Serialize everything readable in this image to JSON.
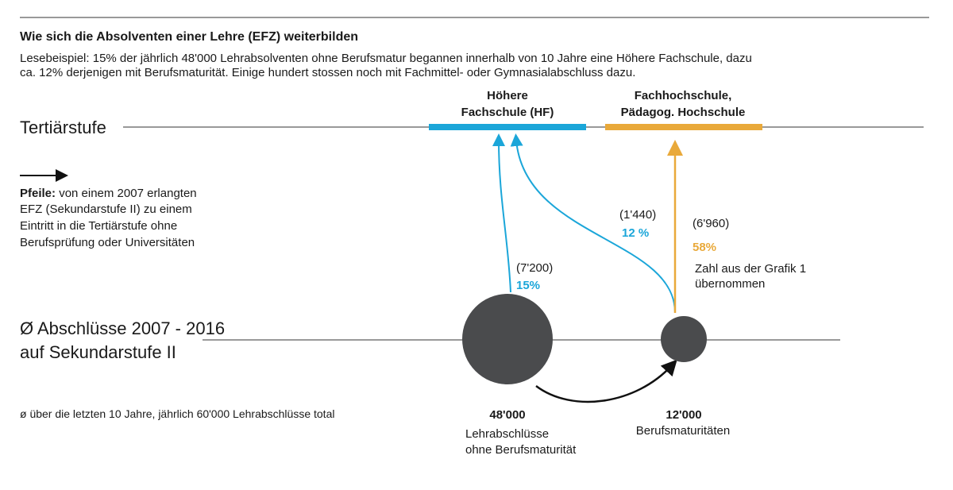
{
  "header": {
    "title": "Wie sich die Absolventen einer Lehre (EFZ) weiterbilden",
    "subtitle": [
      "Lesebeispiel: 15% der jährlich 48'000 Lehrabsolventen ohne Berufsmatur begannen innerhalb von 10 Jahre eine Höhere Fachschule, dazu",
      "ca. 12% derjenigen mit Berufsmaturität. Einige hundert stossen noch mit Fachmittel- oder Gymnasialabschluss dazu."
    ]
  },
  "levels": {
    "tertiary": "Tertiärstufe",
    "secondary": [
      "Ø Abschlüsse 2007 - 2016",
      "auf Sekundarstufe II"
    ]
  },
  "targets": [
    {
      "label": [
        "Höhere",
        "Fachschule (HF)"
      ]
    },
    {
      "label": [
        "Fachhochschule,",
        "Pädagog. Hochschule"
      ]
    }
  ],
  "legend": {
    "label": "Pfeile:",
    "lines": [
      "von einem 2007 erlangten",
      "EFZ (Sekundarstufe II) zu einem",
      "Eintritt in die Tertiärstufe ohne",
      "Berufsprüfung oder Universitäten"
    ]
  },
  "flows": [
    {
      "count": "(7'200)",
      "share": "15%"
    },
    {
      "count": "(1'440)",
      "share": "12 %"
    },
    {
      "count": "(6'960)",
      "share": "58%",
      "note": [
        "Zahl aus der Grafik 1",
        "übernommen"
      ]
    }
  ],
  "sources": [
    {
      "value": "48'000",
      "label": [
        "Lehrabschlüsse",
        "ohne Berufsmaturität"
      ]
    },
    {
      "value": "12'000",
      "label": [
        "Berufsmaturitäten"
      ]
    }
  ],
  "footnote": "ø über die letzten 10 Jahre, jährlich 60'000 Lehrabschlüsse total"
}
